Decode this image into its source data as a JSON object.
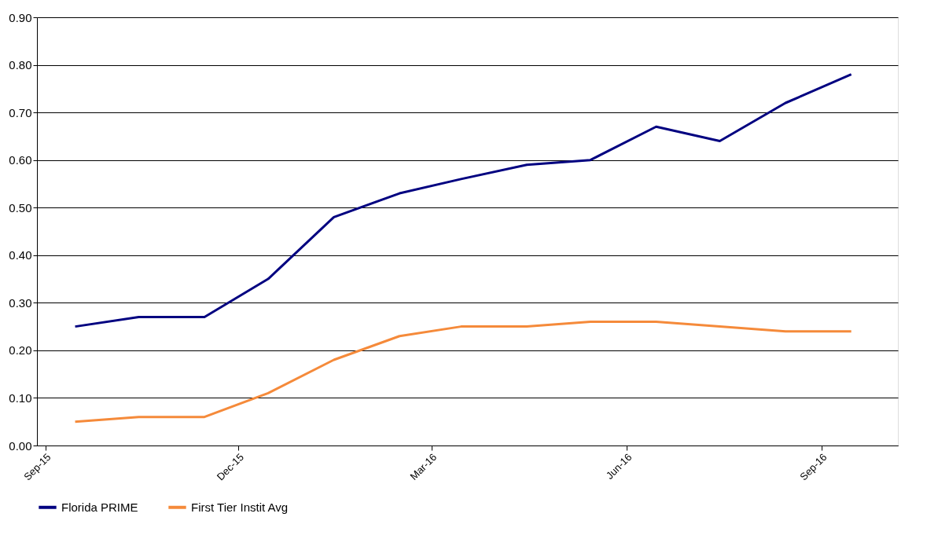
{
  "chart_data": {
    "type": "line",
    "x": [
      "2015-09-15",
      "2015-10-15",
      "2015-11-15",
      "2015-12-15",
      "2016-01-15",
      "2016-02-15",
      "2016-03-15",
      "2016-04-15",
      "2016-05-15",
      "2016-06-15",
      "2016-07-15",
      "2016-08-15",
      "2016-09-15"
    ],
    "series": [
      {
        "name": "Florida PRIME",
        "color": "#000080",
        "values": [
          0.25,
          0.27,
          0.27,
          0.35,
          0.48,
          0.53,
          0.56,
          0.59,
          0.6,
          0.67,
          0.64,
          0.72,
          0.78
        ]
      },
      {
        "name": "First Tier Instit Avg",
        "color": "#f58a3a",
        "values": [
          0.05,
          0.06,
          0.06,
          0.11,
          0.18,
          0.23,
          0.25,
          0.25,
          0.26,
          0.26,
          0.25,
          0.24,
          0.24
        ]
      }
    ],
    "xlim": [
      "2015-08-28",
      "2016-10-07"
    ],
    "xticks": [
      {
        "value": "2015-09-01",
        "label": "Sep-15"
      },
      {
        "value": "2015-12-01",
        "label": "Dec-15"
      },
      {
        "value": "2016-03-01",
        "label": "Mar-16"
      },
      {
        "value": "2016-06-01",
        "label": "Jun-16"
      },
      {
        "value": "2016-09-01",
        "label": "Sep-16"
      }
    ],
    "ylim": [
      0,
      0.9
    ],
    "yticks": [
      {
        "value": 0,
        "label": "0.00"
      },
      {
        "value": 0.1,
        "label": "0.10"
      },
      {
        "value": 0.2,
        "label": "0.20"
      },
      {
        "value": 0.3,
        "label": "0.30"
      },
      {
        "value": 0.4,
        "label": "0.40"
      },
      {
        "value": 0.5,
        "label": "0.50"
      },
      {
        "value": 0.6,
        "label": "0.60"
      },
      {
        "value": 0.7,
        "label": "0.70"
      },
      {
        "value": 0.8,
        "label": "0.80"
      },
      {
        "value": 0.9,
        "label": "0.90"
      }
    ],
    "grid": "y",
    "legend": "bottom",
    "marker": "none",
    "line_style": "solid"
  }
}
